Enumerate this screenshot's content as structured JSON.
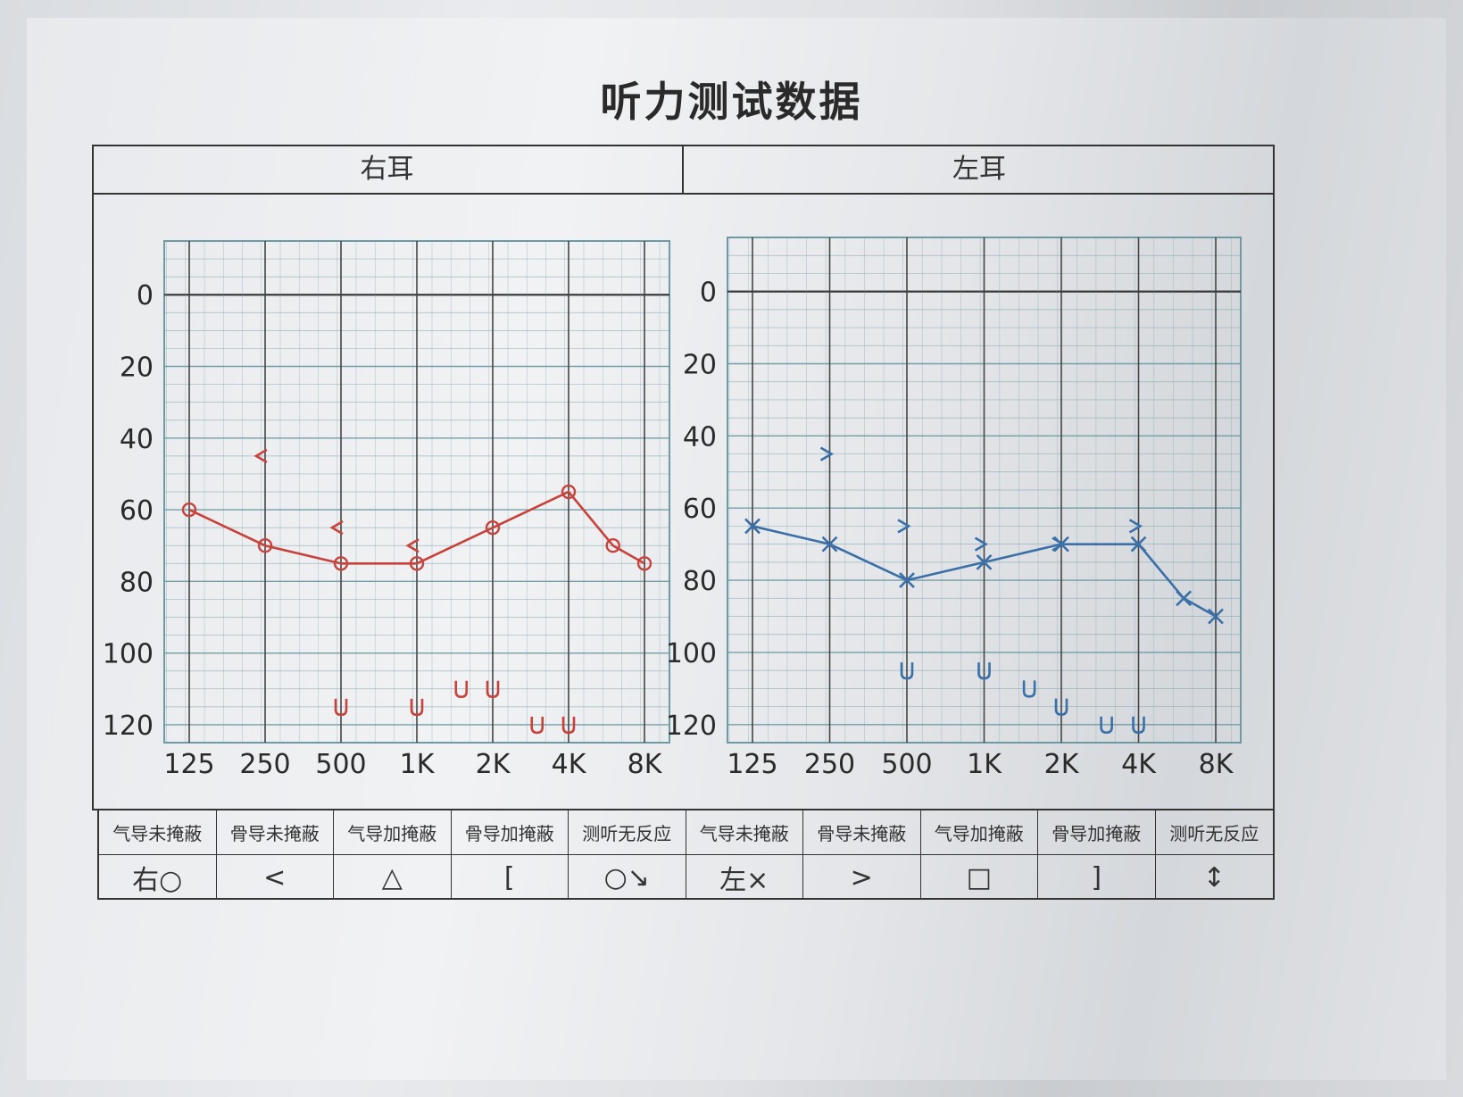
{
  "title": "听力测试数据",
  "ears": {
    "right": "右耳",
    "left": "左耳"
  },
  "legend": {
    "labels": [
      "气导未掩蔽",
      "骨导未掩蔽",
      "气导加掩蔽",
      "骨导加掩蔽",
      "测听无反应",
      "气导未掩蔽",
      "骨导未掩蔽",
      "气导加掩蔽",
      "骨导加掩蔽",
      "测听无反应"
    ],
    "symbols": [
      "右○",
      "<",
      "△",
      "[",
      "○↘",
      "左×",
      ">",
      "□",
      "]",
      "↕"
    ]
  },
  "colors": {
    "right": "#c8423b",
    "left": "#3a6fa8",
    "grid": "#6e9aa4",
    "ink": "#333333"
  },
  "chart_data": [
    {
      "type": "line",
      "ear": "右耳",
      "x": [
        "125",
        "250",
        "500",
        "1K",
        "2K",
        "4K",
        "8K"
      ],
      "y_ticks": [
        0,
        20,
        40,
        60,
        80,
        100,
        120
      ],
      "ylim": [
        -15,
        125
      ],
      "y_inverted": true,
      "grid": true,
      "series": [
        {
          "values": [
            60,
            70,
            75,
            75,
            65,
            55,
            75
          ],
          "extra_points": [
            {
              "x": "6K",
              "y": 70
            }
          ]
        }
      ],
      "bone": [
        {
          "x": "250",
          "y": 45
        },
        {
          "x": "500",
          "y": 65
        },
        {
          "x": "1K",
          "y": 70
        }
      ],
      "no_response": [
        {
          "x": "500",
          "y": 115
        },
        {
          "x": "1K",
          "y": 115
        },
        {
          "x": "1.5K",
          "y": 110
        },
        {
          "x": "2K",
          "y": 110
        },
        {
          "x": "3K",
          "y": 120
        },
        {
          "x": "4K",
          "y": 120
        }
      ]
    },
    {
      "type": "line",
      "ear": "左耳",
      "x": [
        "125",
        "250",
        "500",
        "1K",
        "2K",
        "4K",
        "8K"
      ],
      "y_ticks": [
        0,
        20,
        40,
        60,
        80,
        100,
        120
      ],
      "ylim": [
        -15,
        125
      ],
      "y_inverted": true,
      "grid": true,
      "series": [
        {
          "values": [
            65,
            70,
            80,
            75,
            70,
            70,
            90
          ],
          "extra_points": [
            {
              "x": "6K",
              "y": 85
            }
          ]
        }
      ],
      "bone": [
        {
          "x": "250",
          "y": 45
        },
        {
          "x": "500",
          "y": 65
        },
        {
          "x": "1K",
          "y": 70
        },
        {
          "x": "2K",
          "y": 70
        },
        {
          "x": "4K",
          "y": 65
        }
      ],
      "no_response": [
        {
          "x": "500",
          "y": 105
        },
        {
          "x": "1K",
          "y": 105
        },
        {
          "x": "1.5K",
          "y": 110
        },
        {
          "x": "2K",
          "y": 115
        },
        {
          "x": "3K",
          "y": 120
        },
        {
          "x": "4K",
          "y": 120
        }
      ]
    }
  ]
}
